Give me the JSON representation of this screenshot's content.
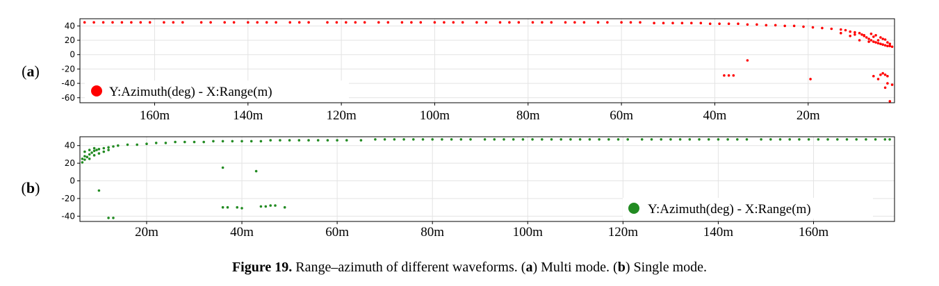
{
  "caption": {
    "number": "Figure 19.",
    "text": "Range–azimuth of different waveforms. (a) Multi mode. (b) Single mode."
  },
  "chart_data": [
    {
      "type": "scatter",
      "panel_label": "(a)",
      "legend": "Y:Azimuth(deg) -  X:Range(m)",
      "legend_position": "bottom-left",
      "color": "#ff0000",
      "x_axis": "reversed",
      "xlim": [
        176,
        1.5
      ],
      "ylim": [
        -67,
        50
      ],
      "xticks": [
        160,
        140,
        120,
        100,
        80,
        60,
        40,
        20
      ],
      "xtick_labels": [
        "160m",
        "140m",
        "120m",
        "100m",
        "80m",
        "60m",
        "40m",
        "20m"
      ],
      "yticks": [
        40,
        20,
        0,
        -20,
        -40,
        -60
      ],
      "grid": true,
      "points": [
        [
          175,
          45
        ],
        [
          173,
          45
        ],
        [
          171,
          45
        ],
        [
          169,
          45
        ],
        [
          167,
          45
        ],
        [
          165,
          45
        ],
        [
          163,
          45
        ],
        [
          161,
          45
        ],
        [
          158,
          45
        ],
        [
          156,
          45
        ],
        [
          154,
          45
        ],
        [
          150,
          45
        ],
        [
          148,
          45
        ],
        [
          145,
          45
        ],
        [
          143,
          45
        ],
        [
          140,
          45
        ],
        [
          138,
          45
        ],
        [
          136,
          45
        ],
        [
          134,
          45
        ],
        [
          131,
          45
        ],
        [
          129,
          45
        ],
        [
          127,
          45
        ],
        [
          123,
          45
        ],
        [
          121,
          45
        ],
        [
          119,
          45
        ],
        [
          117,
          45
        ],
        [
          115,
          45
        ],
        [
          112,
          45
        ],
        [
          110,
          45
        ],
        [
          107,
          45
        ],
        [
          105,
          45
        ],
        [
          103,
          45
        ],
        [
          100,
          45
        ],
        [
          98,
          45
        ],
        [
          96,
          45
        ],
        [
          94,
          45
        ],
        [
          91,
          45
        ],
        [
          89,
          45
        ],
        [
          86,
          45
        ],
        [
          84,
          45
        ],
        [
          82,
          45
        ],
        [
          79,
          45
        ],
        [
          77,
          45
        ],
        [
          75,
          45
        ],
        [
          72,
          45
        ],
        [
          70,
          45
        ],
        [
          68,
          45
        ],
        [
          65,
          45
        ],
        [
          63,
          45
        ],
        [
          60,
          45
        ],
        [
          58,
          45
        ],
        [
          56,
          45
        ],
        [
          53,
          44
        ],
        [
          51,
          44
        ],
        [
          49,
          44
        ],
        [
          47,
          44
        ],
        [
          45,
          44
        ],
        [
          43,
          44
        ],
        [
          41,
          43
        ],
        [
          39,
          43
        ],
        [
          37,
          43
        ],
        [
          35,
          43
        ],
        [
          33,
          42
        ],
        [
          31,
          42
        ],
        [
          29,
          41
        ],
        [
          27,
          41
        ],
        [
          25,
          40
        ],
        [
          23,
          40
        ],
        [
          21,
          39
        ],
        [
          19,
          38
        ],
        [
          17,
          37
        ],
        [
          15,
          36
        ],
        [
          13,
          35
        ],
        [
          12,
          34
        ],
        [
          11,
          32
        ],
        [
          10,
          31
        ],
        [
          9,
          30
        ],
        [
          8.5,
          28
        ],
        [
          8,
          26
        ],
        [
          7.5,
          24
        ],
        [
          7,
          22
        ],
        [
          6.5,
          20
        ],
        [
          6,
          18
        ],
        [
          5.5,
          17
        ],
        [
          5,
          16
        ],
        [
          4.5,
          15
        ],
        [
          4,
          14
        ],
        [
          3.5,
          13
        ],
        [
          3,
          12
        ],
        [
          2.5,
          12
        ],
        [
          2,
          11
        ],
        [
          9,
          20
        ],
        [
          7,
          18
        ],
        [
          5,
          20
        ],
        [
          13,
          30
        ],
        [
          10,
          28
        ],
        [
          8,
          27
        ],
        [
          6,
          25
        ],
        [
          4,
          22
        ],
        [
          3,
          17
        ],
        [
          11,
          26
        ],
        [
          6.5,
          29
        ],
        [
          5.5,
          27
        ],
        [
          4.5,
          24
        ],
        [
          3.5,
          21
        ],
        [
          2.5,
          15
        ],
        [
          38,
          -29
        ],
        [
          37,
          -29
        ],
        [
          36,
          -29
        ],
        [
          33,
          -8
        ],
        [
          19.5,
          -34
        ],
        [
          6,
          -30
        ],
        [
          4.5,
          -28
        ],
        [
          4,
          -26
        ],
        [
          3.5,
          -28
        ],
        [
          3,
          -30
        ],
        [
          3,
          -40
        ],
        [
          5,
          -34
        ],
        [
          3.5,
          -46
        ],
        [
          2,
          -42
        ],
        [
          2.5,
          -65
        ]
      ]
    },
    {
      "type": "scatter",
      "panel_label": "(b)",
      "legend": "Y:Azimuth(deg) -  X:Range(m)",
      "legend_position": "bottom-right",
      "color": "#228b22",
      "xlim": [
        6,
        177
      ],
      "ylim": [
        -46,
        50
      ],
      "xticks": [
        20,
        40,
        60,
        80,
        100,
        120,
        140,
        160
      ],
      "xtick_labels": [
        "20m",
        "40m",
        "60m",
        "80m",
        "100m",
        "120m",
        "140m",
        "160m"
      ],
      "yticks": [
        40,
        20,
        0,
        -20,
        -40
      ],
      "grid": true,
      "points": [
        [
          6.5,
          21
        ],
        [
          7,
          24
        ],
        [
          7.5,
          27
        ],
        [
          8,
          30
        ],
        [
          8.5,
          32
        ],
        [
          9,
          34
        ],
        [
          9.5,
          35
        ],
        [
          10,
          36
        ],
        [
          11,
          37
        ],
        [
          12,
          38
        ],
        [
          13,
          39
        ],
        [
          14,
          40
        ],
        [
          16,
          41
        ],
        [
          18,
          41
        ],
        [
          20,
          42
        ],
        [
          22,
          43
        ],
        [
          24,
          43
        ],
        [
          26,
          44
        ],
        [
          28,
          44
        ],
        [
          30,
          44
        ],
        [
          32,
          44
        ],
        [
          34,
          45
        ],
        [
          36,
          45
        ],
        [
          38,
          45
        ],
        [
          40,
          45
        ],
        [
          42,
          45
        ],
        [
          44,
          45
        ],
        [
          46,
          46
        ],
        [
          48,
          46
        ],
        [
          50,
          46
        ],
        [
          52,
          46
        ],
        [
          54,
          46
        ],
        [
          56,
          46
        ],
        [
          58,
          46
        ],
        [
          60,
          46
        ],
        [
          62,
          46
        ],
        [
          65,
          46
        ],
        [
          68,
          47
        ],
        [
          70,
          47
        ],
        [
          72,
          47
        ],
        [
          74,
          47
        ],
        [
          76,
          47
        ],
        [
          78,
          47
        ],
        [
          80,
          47
        ],
        [
          82,
          47
        ],
        [
          84,
          47
        ],
        [
          86,
          47
        ],
        [
          88,
          47
        ],
        [
          91,
          47
        ],
        [
          93,
          47
        ],
        [
          95,
          47
        ],
        [
          97,
          47
        ],
        [
          99,
          47
        ],
        [
          101,
          47
        ],
        [
          103,
          47
        ],
        [
          105,
          47
        ],
        [
          107,
          47
        ],
        [
          109,
          47
        ],
        [
          111,
          47
        ],
        [
          113,
          47
        ],
        [
          115,
          47
        ],
        [
          117,
          47
        ],
        [
          119,
          47
        ],
        [
          121,
          47
        ],
        [
          124,
          47
        ],
        [
          126,
          47
        ],
        [
          128,
          47
        ],
        [
          130,
          47
        ],
        [
          132,
          47
        ],
        [
          134,
          47
        ],
        [
          136,
          47
        ],
        [
          138,
          47
        ],
        [
          140,
          47
        ],
        [
          142,
          47
        ],
        [
          144,
          47
        ],
        [
          146,
          47
        ],
        [
          149,
          47
        ],
        [
          151,
          47
        ],
        [
          153,
          47
        ],
        [
          155,
          47
        ],
        [
          157,
          47
        ],
        [
          159,
          47
        ],
        [
          161,
          47
        ],
        [
          163,
          47
        ],
        [
          165,
          47
        ],
        [
          167,
          47
        ],
        [
          169,
          47
        ],
        [
          171,
          47
        ],
        [
          173,
          47
        ],
        [
          175,
          47
        ],
        [
          176,
          47
        ],
        [
          7,
          28
        ],
        [
          8,
          25
        ],
        [
          9,
          29
        ],
        [
          10,
          31
        ],
        [
          11,
          33
        ],
        [
          12,
          35
        ],
        [
          7,
          33
        ],
        [
          9,
          37
        ],
        [
          6.5,
          25
        ],
        [
          8,
          35
        ],
        [
          10,
          -11
        ],
        [
          12,
          -42
        ],
        [
          13,
          -42
        ],
        [
          36,
          15
        ],
        [
          43,
          11
        ],
        [
          36,
          -30
        ],
        [
          37,
          -30
        ],
        [
          39,
          -30
        ],
        [
          40,
          -31
        ],
        [
          44,
          -29
        ],
        [
          45,
          -29
        ],
        [
          46,
          -28
        ],
        [
          47,
          -28
        ],
        [
          49,
          -30
        ]
      ]
    }
  ]
}
